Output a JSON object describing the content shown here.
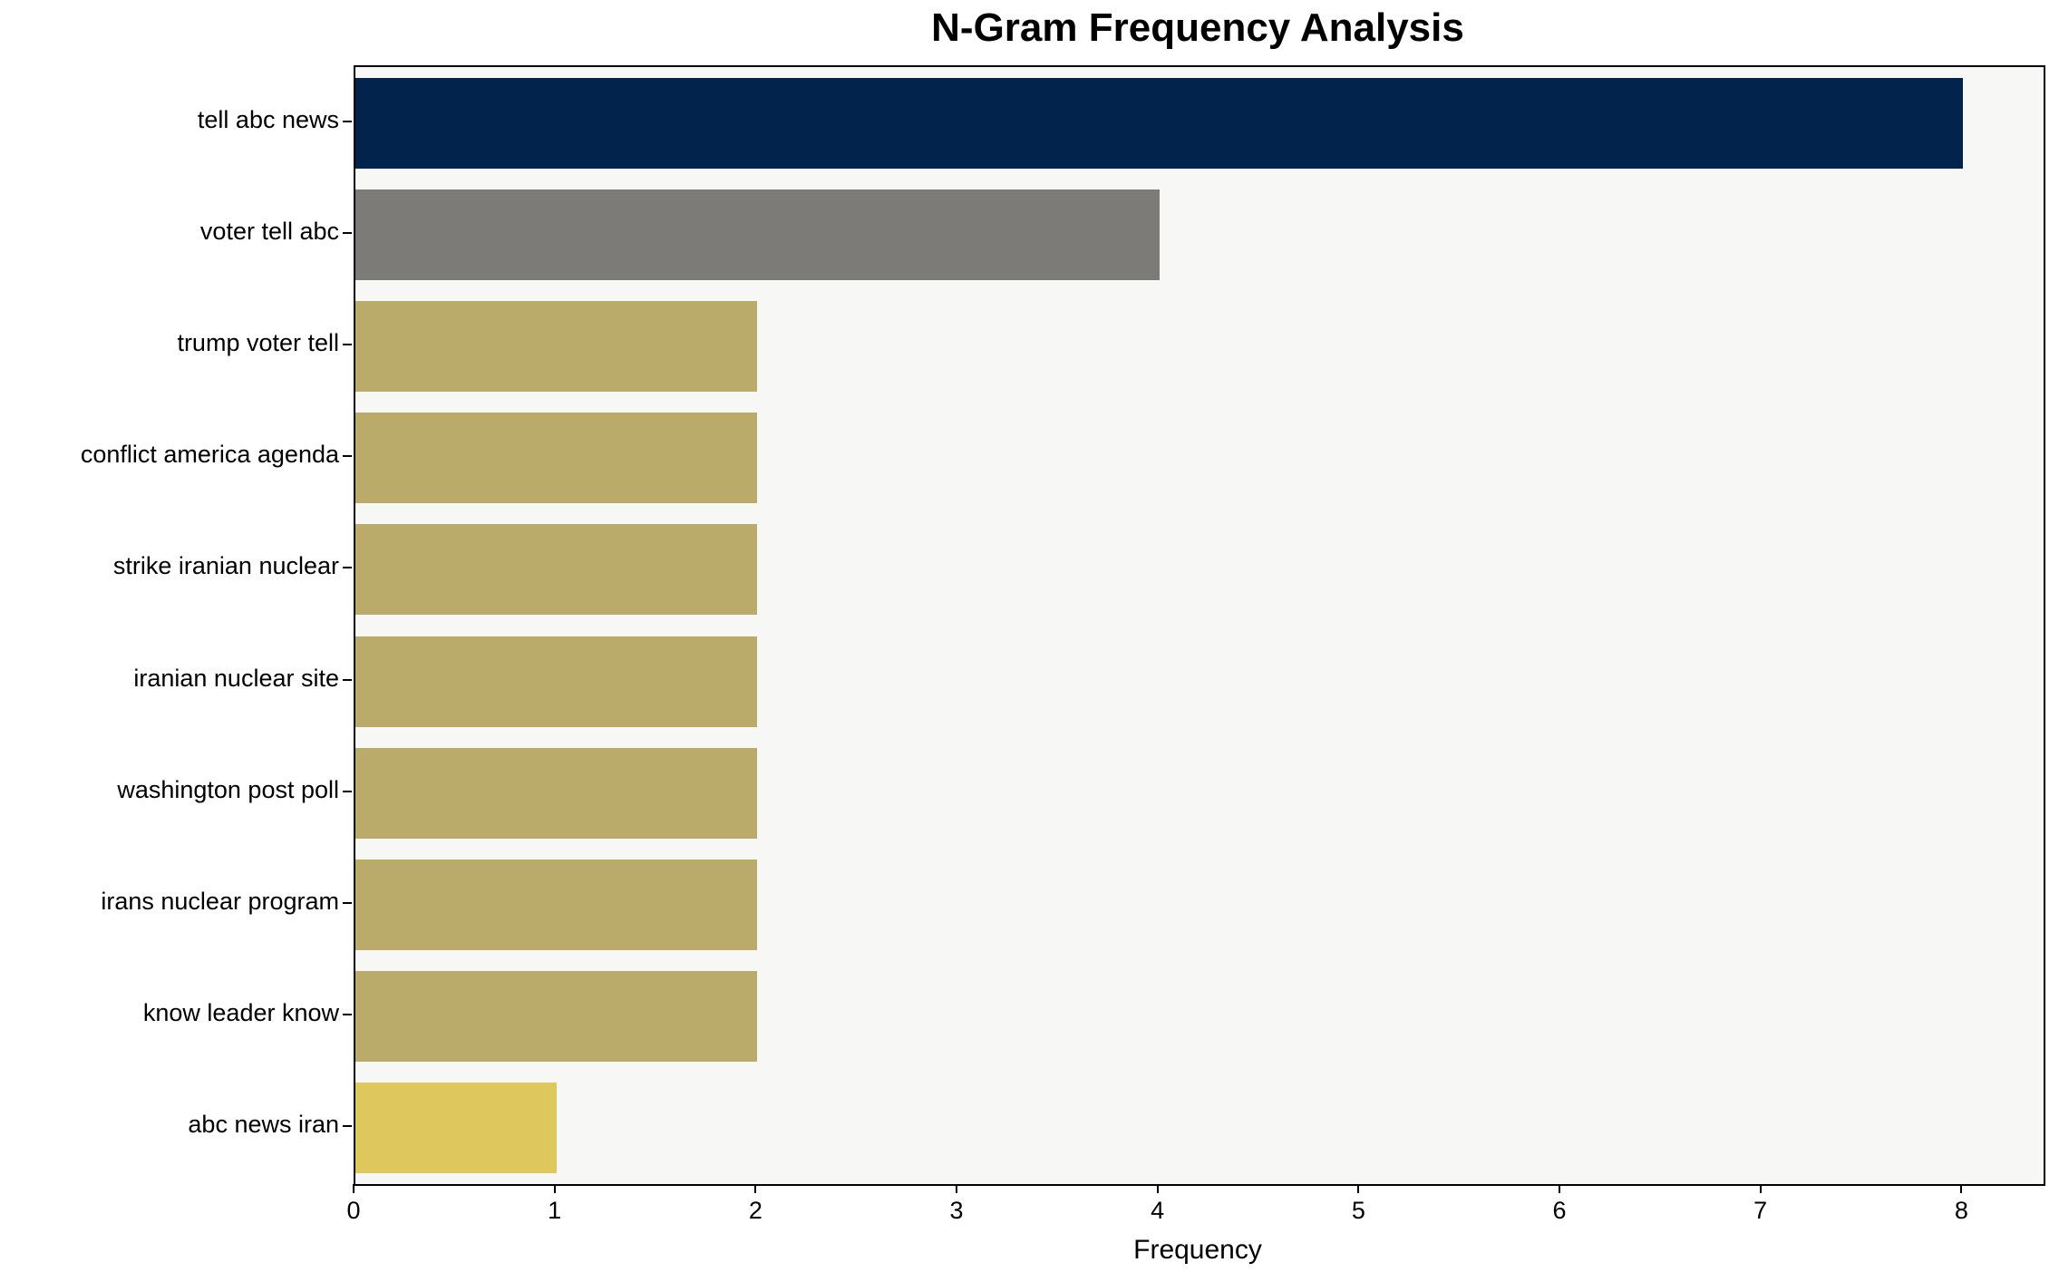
{
  "chart_data": {
    "type": "bar",
    "orientation": "horizontal",
    "title": "N-Gram Frequency Analysis",
    "categories": [
      "tell abc news",
      "voter tell abc",
      "trump voter tell",
      "conflict america agenda",
      "strike iranian nuclear",
      "iranian nuclear site",
      "washington post poll",
      "irans nuclear program",
      "know leader know",
      "abc news iran"
    ],
    "values": [
      8,
      4,
      2,
      2,
      2,
      2,
      2,
      2,
      2,
      1
    ],
    "bar_colors": [
      "#02234c",
      "#7c7b77",
      "#bbab6b",
      "#bbab6b",
      "#bbab6b",
      "#bbab6b",
      "#bbab6b",
      "#bbab6b",
      "#bbab6b",
      "#dec75c"
    ],
    "xlabel": "Frequency",
    "ylabel": "",
    "xlim": [
      0,
      8.4
    ],
    "xticks": [
      0,
      1,
      2,
      3,
      4,
      5,
      6,
      7,
      8
    ],
    "grid": false,
    "legend": false,
    "plot_background": "#f7f7f6",
    "figure_background": "#ffffff",
    "bar_height_fraction": 0.81
  }
}
